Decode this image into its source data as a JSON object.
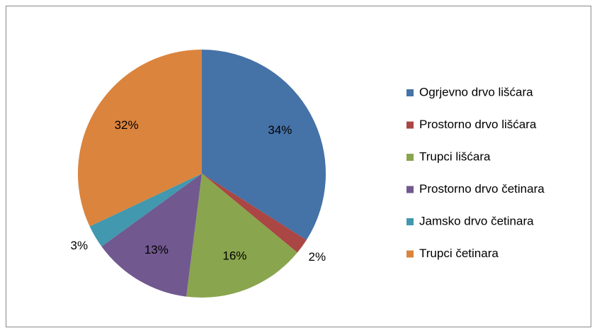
{
  "chart_data": {
    "type": "pie",
    "categories": [
      "Ogrjevno drvo lišćara",
      "Prostorno drvo lišćara",
      "Trupci lišćara",
      "Prostorno drvo četinara",
      "Jamsko drvo četinara",
      "Trupci četinara"
    ],
    "values": [
      34,
      2,
      16,
      13,
      3,
      32
    ],
    "value_labels": [
      "34%",
      "2%",
      "16%",
      "13%",
      "3%",
      "32%"
    ],
    "colors": [
      "#4572a7",
      "#aa4643",
      "#89a54e",
      "#71588f",
      "#4198af",
      "#db843d"
    ],
    "legend": "right"
  }
}
